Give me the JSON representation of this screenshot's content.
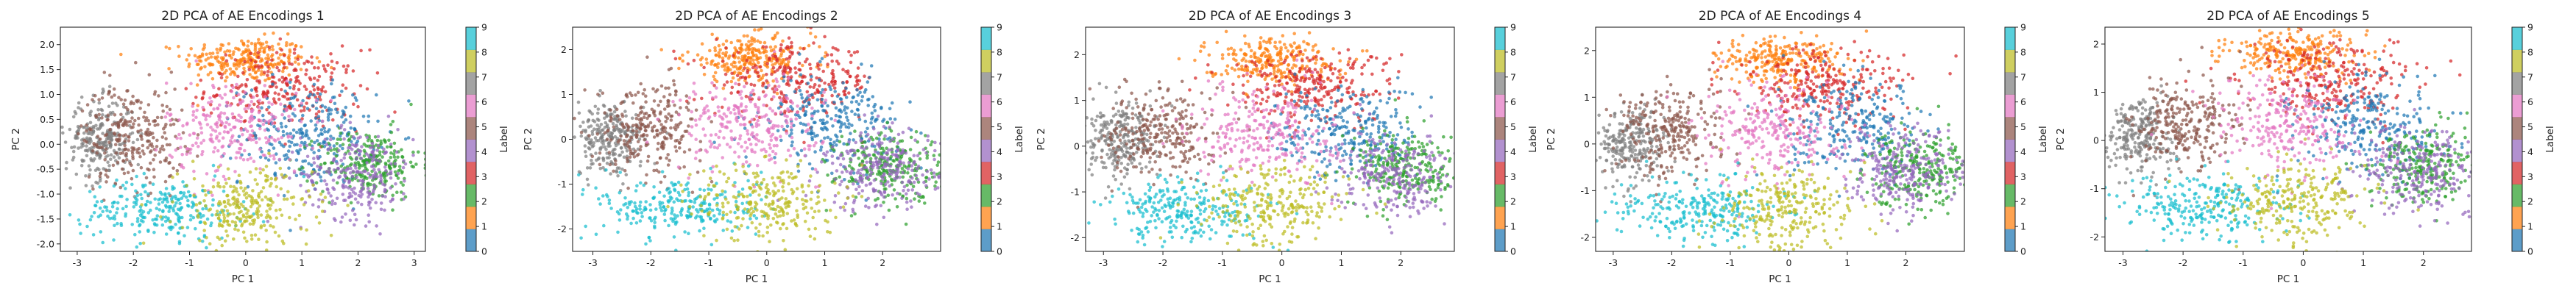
{
  "colors": {
    "label_0": "#1f77b4",
    "label_1": "#ff7f0e",
    "label_2": "#2ca02c",
    "label_3": "#d62728",
    "label_4": "#9467bd",
    "label_5": "#8c564b",
    "label_6": "#e377c2",
    "label_7": "#7f7f7f",
    "label_8": "#bcbd22",
    "label_9": "#17becf"
  },
  "chart_data": [
    {
      "type": "scatter",
      "title": "2D PCA of AE Encodings 1",
      "xlabel": "PC 1",
      "ylabel": "PC 2",
      "xlim": [
        -3.3,
        3.2
      ],
      "ylim": [
        -2.15,
        2.35
      ],
      "xticks": [
        "-3",
        "-2",
        "-1",
        "0",
        "1",
        "2",
        "3"
      ],
      "yticks": [
        "-2.0",
        "-1.5",
        "-1.0",
        "-0.5",
        "0.0",
        "0.5",
        "1.0",
        "1.5",
        "2.0"
      ],
      "grid": false,
      "colorbar": {
        "label": "Label",
        "ticks": [
          "0",
          "1",
          "2",
          "3",
          "4",
          "5",
          "6",
          "7",
          "8",
          "9"
        ],
        "colormap": "tab10"
      },
      "clusters": [
        {
          "label": 1,
          "center": [
            0.0,
            1.7
          ],
          "spread": [
            0.55,
            0.22
          ]
        },
        {
          "label": 3,
          "center": [
            0.7,
            1.1
          ],
          "spread": [
            0.7,
            0.4
          ]
        },
        {
          "label": 0,
          "center": [
            1.1,
            0.2
          ],
          "spread": [
            0.6,
            0.5
          ]
        },
        {
          "label": 2,
          "center": [
            2.2,
            -0.4
          ],
          "spread": [
            0.45,
            0.35
          ]
        },
        {
          "label": 4,
          "center": [
            2.0,
            -0.6
          ],
          "spread": [
            0.5,
            0.45
          ]
        },
        {
          "label": 7,
          "center": [
            -2.6,
            0.1
          ],
          "spread": [
            0.3,
            0.4
          ]
        },
        {
          "label": 5,
          "center": [
            -2.0,
            0.2
          ],
          "spread": [
            0.45,
            0.5
          ]
        },
        {
          "label": 6,
          "center": [
            -0.2,
            0.3
          ],
          "spread": [
            0.6,
            0.5
          ]
        },
        {
          "label": 9,
          "center": [
            -1.5,
            -1.3
          ],
          "spread": [
            0.7,
            0.3
          ]
        },
        {
          "label": 8,
          "center": [
            0.0,
            -1.3
          ],
          "spread": [
            0.6,
            0.4
          ]
        }
      ]
    },
    {
      "type": "scatter",
      "title": "2D PCA of AE Encodings 2",
      "xlabel": "PC 1",
      "ylabel": "PC 2",
      "xlim": [
        -3.35,
        3.0
      ],
      "ylim": [
        -2.5,
        2.5
      ],
      "xticks": [
        "-3",
        "-2",
        "-1",
        "0",
        "1",
        "2"
      ],
      "yticks": [
        "-2",
        "-1",
        "0",
        "1",
        "2"
      ],
      "grid": false,
      "colorbar": {
        "label": "Label",
        "ticks": [
          "0",
          "1",
          "2",
          "3",
          "4",
          "5",
          "6",
          "7",
          "8",
          "9"
        ],
        "colormap": "tab10"
      },
      "clusters": [
        {
          "label": 1,
          "center": [
            -0.3,
            1.8
          ],
          "spread": [
            0.55,
            0.25
          ]
        },
        {
          "label": 3,
          "center": [
            0.5,
            1.3
          ],
          "spread": [
            0.7,
            0.4
          ]
        },
        {
          "label": 0,
          "center": [
            1.1,
            0.4
          ],
          "spread": [
            0.6,
            0.5
          ]
        },
        {
          "label": 2,
          "center": [
            2.1,
            -0.6
          ],
          "spread": [
            0.45,
            0.4
          ]
        },
        {
          "label": 4,
          "center": [
            2.0,
            -0.7
          ],
          "spread": [
            0.5,
            0.45
          ]
        },
        {
          "label": 7,
          "center": [
            -2.7,
            0.0
          ],
          "spread": [
            0.3,
            0.4
          ]
        },
        {
          "label": 5,
          "center": [
            -2.0,
            0.3
          ],
          "spread": [
            0.45,
            0.5
          ]
        },
        {
          "label": 6,
          "center": [
            -0.3,
            0.3
          ],
          "spread": [
            0.6,
            0.5
          ]
        },
        {
          "label": 9,
          "center": [
            -1.5,
            -1.5
          ],
          "spread": [
            0.7,
            0.35
          ]
        },
        {
          "label": 8,
          "center": [
            0.0,
            -1.4
          ],
          "spread": [
            0.6,
            0.45
          ]
        }
      ]
    },
    {
      "type": "scatter",
      "title": "2D PCA of AE Encodings 3",
      "xlabel": "PC 1",
      "ylabel": "PC 2",
      "xlim": [
        -3.3,
        2.9
      ],
      "ylim": [
        -2.3,
        2.6
      ],
      "xticks": [
        "-3",
        "-2",
        "-1",
        "0",
        "1",
        "2"
      ],
      "yticks": [
        "-2",
        "-1",
        "0",
        "1",
        "2"
      ],
      "grid": false,
      "colorbar": {
        "label": "Label",
        "ticks": [
          "0",
          "1",
          "2",
          "3",
          "4",
          "5",
          "6",
          "7",
          "8",
          "9"
        ],
        "colormap": "tab10"
      },
      "clusters": [
        {
          "label": 1,
          "center": [
            -0.2,
            1.9
          ],
          "spread": [
            0.55,
            0.25
          ]
        },
        {
          "label": 3,
          "center": [
            0.5,
            1.3
          ],
          "spread": [
            0.7,
            0.4
          ]
        },
        {
          "label": 0,
          "center": [
            1.1,
            0.3
          ],
          "spread": [
            0.6,
            0.5
          ]
        },
        {
          "label": 2,
          "center": [
            2.1,
            -0.5
          ],
          "spread": [
            0.45,
            0.4
          ]
        },
        {
          "label": 4,
          "center": [
            1.9,
            -0.6
          ],
          "spread": [
            0.5,
            0.45
          ]
        },
        {
          "label": 7,
          "center": [
            -2.7,
            0.1
          ],
          "spread": [
            0.3,
            0.4
          ]
        },
        {
          "label": 5,
          "center": [
            -2.0,
            0.3
          ],
          "spread": [
            0.45,
            0.5
          ]
        },
        {
          "label": 6,
          "center": [
            -0.3,
            0.3
          ],
          "spread": [
            0.6,
            0.5
          ]
        },
        {
          "label": 9,
          "center": [
            -1.6,
            -1.4
          ],
          "spread": [
            0.7,
            0.35
          ]
        },
        {
          "label": 8,
          "center": [
            -0.1,
            -1.3
          ],
          "spread": [
            0.6,
            0.45
          ]
        }
      ]
    },
    {
      "type": "scatter",
      "title": "2D PCA of AE Encodings 4",
      "xlabel": "PC 1",
      "ylabel": "PC 2",
      "xlim": [
        -3.3,
        3.0
      ],
      "ylim": [
        -2.3,
        2.5
      ],
      "xticks": [
        "-3",
        "-2",
        "-1",
        "0",
        "1",
        "2"
      ],
      "yticks": [
        "-2",
        "-1",
        "0",
        "1",
        "2"
      ],
      "grid": false,
      "colorbar": {
        "label": "Label",
        "ticks": [
          "0",
          "1",
          "2",
          "3",
          "4",
          "5",
          "6",
          "7",
          "8",
          "9"
        ],
        "colormap": "tab10"
      },
      "clusters": [
        {
          "label": 1,
          "center": [
            -0.2,
            1.8
          ],
          "spread": [
            0.55,
            0.25
          ]
        },
        {
          "label": 3,
          "center": [
            0.6,
            1.2
          ],
          "spread": [
            0.7,
            0.4
          ]
        },
        {
          "label": 0,
          "center": [
            1.2,
            0.3
          ],
          "spread": [
            0.6,
            0.5
          ]
        },
        {
          "label": 2,
          "center": [
            2.2,
            -0.5
          ],
          "spread": [
            0.45,
            0.4
          ]
        },
        {
          "label": 4,
          "center": [
            2.0,
            -0.6
          ],
          "spread": [
            0.5,
            0.45
          ]
        },
        {
          "label": 7,
          "center": [
            -2.7,
            0.0
          ],
          "spread": [
            0.3,
            0.4
          ]
        },
        {
          "label": 5,
          "center": [
            -2.0,
            0.3
          ],
          "spread": [
            0.45,
            0.5
          ]
        },
        {
          "label": 6,
          "center": [
            -0.2,
            0.3
          ],
          "spread": [
            0.6,
            0.5
          ]
        },
        {
          "label": 9,
          "center": [
            -1.5,
            -1.4
          ],
          "spread": [
            0.7,
            0.35
          ]
        },
        {
          "label": 8,
          "center": [
            0.0,
            -1.4
          ],
          "spread": [
            0.6,
            0.45
          ]
        }
      ]
    },
    {
      "type": "scatter",
      "title": "2D PCA of AE Encodings 5",
      "xlabel": "PC 1",
      "ylabel": "PC 2",
      "xlim": [
        -3.3,
        2.8
      ],
      "ylim": [
        -2.3,
        2.35
      ],
      "xticks": [
        "-3",
        "-2",
        "-1",
        "0",
        "1",
        "2"
      ],
      "yticks": [
        "-2",
        "-1",
        "0",
        "1",
        "2"
      ],
      "grid": false,
      "colorbar": {
        "label": "Label",
        "ticks": [
          "0",
          "1",
          "2",
          "3",
          "4",
          "5",
          "6",
          "7",
          "8",
          "9"
        ],
        "colormap": "tab10"
      },
      "clusters": [
        {
          "label": 1,
          "center": [
            -0.2,
            1.8
          ],
          "spread": [
            0.55,
            0.25
          ]
        },
        {
          "label": 3,
          "center": [
            0.5,
            1.2
          ],
          "spread": [
            0.7,
            0.4
          ]
        },
        {
          "label": 0,
          "center": [
            1.1,
            0.3
          ],
          "spread": [
            0.6,
            0.5
          ]
        },
        {
          "label": 2,
          "center": [
            2.0,
            -0.5
          ],
          "spread": [
            0.45,
            0.4
          ]
        },
        {
          "label": 4,
          "center": [
            1.9,
            -0.6
          ],
          "spread": [
            0.5,
            0.45
          ]
        },
        {
          "label": 7,
          "center": [
            -2.7,
            0.1
          ],
          "spread": [
            0.3,
            0.4
          ]
        },
        {
          "label": 5,
          "center": [
            -2.0,
            0.3
          ],
          "spread": [
            0.45,
            0.5
          ]
        },
        {
          "label": 6,
          "center": [
            -0.3,
            0.3
          ],
          "spread": [
            0.6,
            0.5
          ]
        },
        {
          "label": 9,
          "center": [
            -1.6,
            -1.4
          ],
          "spread": [
            0.7,
            0.35
          ]
        },
        {
          "label": 8,
          "center": [
            -0.1,
            -1.3
          ],
          "spread": [
            0.6,
            0.45
          ]
        }
      ]
    }
  ]
}
